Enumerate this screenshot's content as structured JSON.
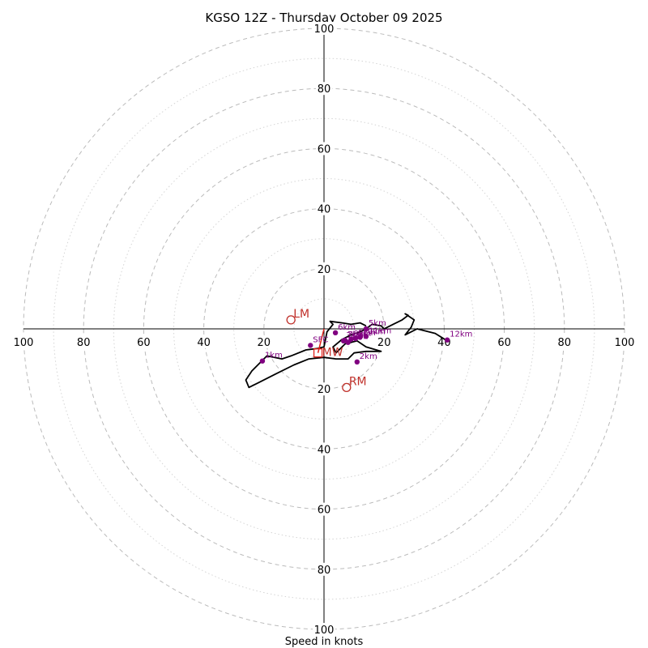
{
  "chart_data": {
    "type": "hodograph",
    "title": "KGSO 12Z - Thursday October 09 2025",
    "xlabel": "Speed in knots",
    "range_kt": 100,
    "major_rings_kt": [
      20,
      40,
      60,
      80,
      100
    ],
    "minor_rings_kt": [
      10,
      30,
      50,
      70,
      90
    ],
    "axis_tick_values": [
      20,
      40,
      60,
      80,
      100
    ],
    "axis_tick_labels": [
      "20",
      "40",
      "60",
      "80",
      "100"
    ],
    "hodograph_trace": [
      [
        0,
        -6
      ],
      [
        -2,
        -6.5
      ],
      [
        -6,
        -7
      ],
      [
        -11,
        -9
      ],
      [
        -14,
        -10
      ],
      [
        -19,
        -9
      ],
      [
        -21,
        -11
      ],
      [
        -24,
        -14
      ],
      [
        -26,
        -17
      ],
      [
        -25,
        -19.5
      ],
      [
        -22,
        -18
      ],
      [
        -16,
        -15
      ],
      [
        -10,
        -12
      ],
      [
        -5,
        -10
      ],
      [
        0,
        -9.5
      ],
      [
        4,
        -10
      ],
      [
        8,
        -10
      ],
      [
        10,
        -8
      ],
      [
        14,
        -7.5
      ],
      [
        19,
        -7.5
      ],
      [
        14,
        -6
      ],
      [
        11,
        -4
      ],
      [
        7,
        -5
      ],
      [
        4,
        -8
      ],
      [
        3,
        -6
      ],
      [
        6,
        -3.5
      ],
      [
        9,
        -2
      ],
      [
        12,
        -1
      ],
      [
        14,
        0
      ],
      [
        16,
        1.5
      ],
      [
        19,
        1
      ],
      [
        20,
        0
      ],
      [
        23,
        1.5
      ],
      [
        26,
        3
      ],
      [
        28,
        4.5
      ],
      [
        27,
        5
      ],
      [
        30,
        3
      ],
      [
        29,
        0.5
      ],
      [
        27,
        -2
      ],
      [
        31,
        0
      ],
      [
        37,
        -1.5
      ],
      [
        41,
        -4
      ]
    ],
    "hodograph_noise": [
      [
        0,
        -6
      ],
      [
        1,
        -1
      ],
      [
        3,
        1.5
      ],
      [
        2,
        2.5
      ],
      [
        6,
        2
      ],
      [
        9,
        1.5
      ],
      [
        12,
        2
      ],
      [
        14,
        1
      ]
    ],
    "height_markers": [
      {
        "label": "1km",
        "u": -20.5,
        "v": -10.7
      },
      {
        "label": "2km",
        "u": 11,
        "v": -11
      },
      {
        "label": "3km",
        "u": 6.5,
        "v": -4
      },
      {
        "label": "4km",
        "u": 8,
        "v": -4.5
      },
      {
        "label": "5km",
        "u": 14,
        "v": 0
      },
      {
        "label": "6km",
        "u": 3.8,
        "v": -1.3
      },
      {
        "label": "7km",
        "u": 7,
        "v": -3.8
      },
      {
        "label": "8km",
        "u": 9,
        "v": -3.5
      },
      {
        "label": "9km",
        "u": 10.5,
        "v": -3.2
      },
      {
        "label": "10km",
        "u": 12,
        "v": -2.8
      },
      {
        "label": "11km",
        "u": 14,
        "v": -2.5
      },
      {
        "label": "12km",
        "u": 41,
        "v": -3.7
      },
      {
        "label": "SFC",
        "u": -4.5,
        "v": -5.5
      }
    ],
    "storm_motion": [
      {
        "label": "LM",
        "u": -11,
        "v": 3
      },
      {
        "label": "RM",
        "u": 7.5,
        "v": -19.5
      }
    ],
    "mean_wind_label": "MW",
    "mean_wind": {
      "u": -2,
      "v": -8
    },
    "shear_vector": {
      "u0": -2,
      "v0": -8,
      "u1": 0,
      "v1": 0
    }
  }
}
